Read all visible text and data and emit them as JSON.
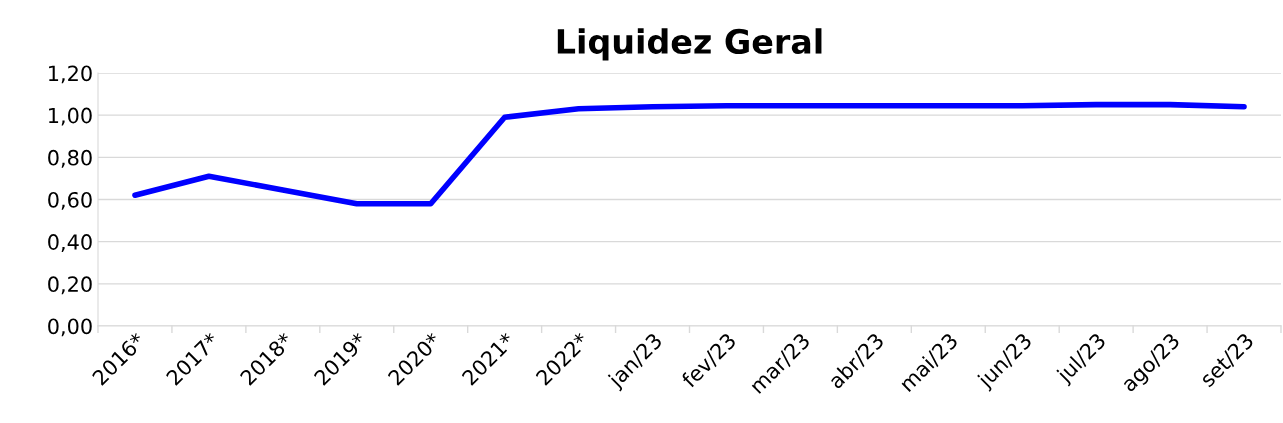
{
  "chart_data": {
    "type": "line",
    "title": "Liquidez Geral",
    "categories": [
      "2016*",
      "2017*",
      "2018*",
      "2019*",
      "2020*",
      "2021*",
      "2022*",
      "jan/23",
      "fev/23",
      "mar/23",
      "abr/23",
      "mai/23",
      "jun/23",
      "jul/23",
      "ago/23",
      "set/23"
    ],
    "series": [
      {
        "color": "#0000ff",
        "values": [
          0.62,
          0.71,
          0.645,
          0.58,
          0.58,
          0.99,
          1.03,
          1.04,
          1.045,
          1.045,
          1.045,
          1.045,
          1.045,
          1.05,
          1.05,
          1.04
        ]
      }
    ],
    "ylim": [
      0,
      1.2
    ],
    "yticks": [
      {
        "value": 0,
        "label": "0,00"
      },
      {
        "value": 0.2,
        "label": "0,20"
      },
      {
        "value": 0.4,
        "label": "0,40"
      },
      {
        "value": 0.6,
        "label": "0,60"
      },
      {
        "value": 0.8,
        "label": "0,80"
      },
      {
        "value": 1.0,
        "label": "1,00"
      },
      {
        "value": 1.2,
        "label": "1,20"
      }
    ],
    "grid": "y",
    "legend": false,
    "marker": "none",
    "line_style": "solid"
  }
}
